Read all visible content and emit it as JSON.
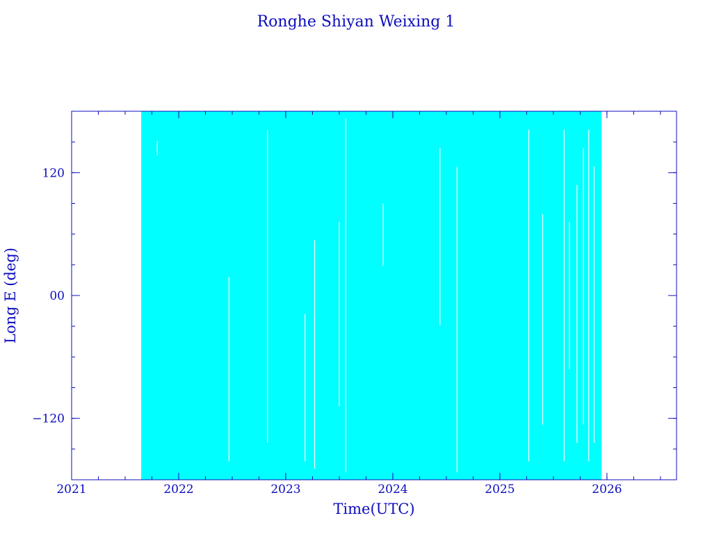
{
  "chart_data": {
    "type": "line",
    "title": "Ronghe Shiyan Weixing 1",
    "xlabel": "Time(UTC)",
    "ylabel": "Long E (deg)",
    "xlim": [
      2021.0,
      2026.65
    ],
    "ylim": [
      -180,
      180
    ],
    "x_ticks": [
      {
        "value": 2021,
        "label": "2021"
      },
      {
        "value": 2022,
        "label": "2022"
      },
      {
        "value": 2023,
        "label": "2023"
      },
      {
        "value": 2024,
        "label": "2024"
      },
      {
        "value": 2025,
        "label": "2025"
      },
      {
        "value": 2026,
        "label": "2026"
      }
    ],
    "y_ticks": [
      {
        "value": 120,
        "label": "120"
      },
      {
        "value": 0,
        "label": "00"
      },
      {
        "value": -120,
        "label": "−120"
      }
    ],
    "x_minor_step": 0.25,
    "y_minor_step": 30,
    "grid": false,
    "legend": "none",
    "series": [
      {
        "color": "#00ffff",
        "description_range": "dense longitude trace wrapping -180 to 180",
        "start": 2021.65,
        "end": 2025.95,
        "ymin": -180,
        "ymax": 180
      }
    ],
    "colors": {
      "axis": "#0d0dbe",
      "text": "#0d0dbe",
      "data": "#00ffff",
      "background": "#ffffff"
    }
  }
}
